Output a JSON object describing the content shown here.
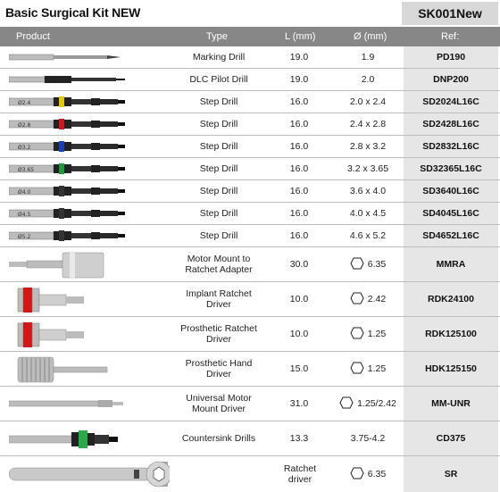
{
  "title": "Basic Surgical Kit NEW",
  "kit_code": "SK001New",
  "headers": {
    "product": "Product",
    "type": "Type",
    "length": "L (mm)",
    "diameter": "Ø (mm)",
    "ref": "Ref:"
  },
  "rows": [
    {
      "type": "Marking Drill",
      "length": "19.0",
      "diameter": "1.9",
      "ref": "PD190",
      "img": "marking-drill",
      "color": ""
    },
    {
      "type": "DLC Pilot Drill",
      "length": "19.0",
      "diameter": "2.0",
      "ref": "DNP200",
      "img": "pilot-drill",
      "color": ""
    },
    {
      "type": "Step Drill",
      "length": "16.0",
      "diameter": "2.0 x 2.4",
      "ref": "SD2024L16C",
      "img": "step-drill",
      "color": "#e6c800",
      "mark": "Ø2.4"
    },
    {
      "type": "Step Drill",
      "length": "16.0",
      "diameter": "2.4 x 2.8",
      "ref": "SD2428L16C",
      "img": "step-drill",
      "color": "#d01818",
      "mark": "Ø2.8"
    },
    {
      "type": "Step Drill",
      "length": "16.0",
      "diameter": "2.8 x 3.2",
      "ref": "SD2832L16C",
      "img": "step-drill",
      "color": "#1c3fb8",
      "mark": "Ø3.2"
    },
    {
      "type": "Step Drill",
      "length": "16.0",
      "diameter": "3.2 x 3.65",
      "ref": "SD32365L16C",
      "img": "step-drill",
      "color": "#1d9a3a",
      "mark": "Ø3.65"
    },
    {
      "type": "Step Drill",
      "length": "16.0",
      "diameter": "3.6 x 4.0",
      "ref": "SD3640L16C",
      "img": "step-drill",
      "color": "#333333",
      "mark": "Ø4.0"
    },
    {
      "type": "Step Drill",
      "length": "16.0",
      "diameter": "4.0 x 4.5",
      "ref": "SD4045L16C",
      "img": "step-drill",
      "color": "#333333",
      "mark": "Ø4.5"
    },
    {
      "type": "Step Drill",
      "length": "16.0",
      "diameter": "4.6 x 5.2",
      "ref": "SD4652L16C",
      "img": "step-drill",
      "color": "#333333",
      "mark": "Ø5.2"
    },
    {
      "type_lines": [
        "Motor Mount to",
        "Ratchet Adapter"
      ],
      "length": "30.0",
      "diameter": "6.35",
      "hex": true,
      "ref": "MMRA",
      "img": "adapter"
    },
    {
      "type_lines": [
        "Implant Ratchet",
        "Driver"
      ],
      "length": "10.0",
      "diameter": "2.42",
      "hex": true,
      "ref": "RDK24100",
      "img": "ratchet-driver",
      "color": "#d01818"
    },
    {
      "type_lines": [
        "Prosthetic Ratchet",
        "Driver"
      ],
      "length": "10.0",
      "diameter": "1.25",
      "hex": true,
      "ref": "RDK125100",
      "img": "ratchet-driver",
      "color": "#d01818"
    },
    {
      "type_lines": [
        "Prosthetic Hand",
        "Driver"
      ],
      "length": "15.0",
      "diameter": "1.25",
      "hex": true,
      "ref": "HDK125150",
      "img": "hand-driver"
    },
    {
      "type_lines": [
        "Universal Motor",
        "Mount Driver"
      ],
      "length": "31.0",
      "diameter": "1.25/2.42",
      "hex": true,
      "ref": "MM-UNR",
      "img": "motor-driver"
    },
    {
      "type": "Countersink Drills",
      "length": "13.3",
      "diameter": "3.75-4.2",
      "ref": "CD375",
      "img": "countersink",
      "color": "#2aa84a"
    },
    {
      "type_lines": [
        "Ratchet",
        "driver"
      ],
      "length": "",
      "diameter": "6.35",
      "hex": true,
      "ref": "SR",
      "img": "ratchet"
    }
  ]
}
